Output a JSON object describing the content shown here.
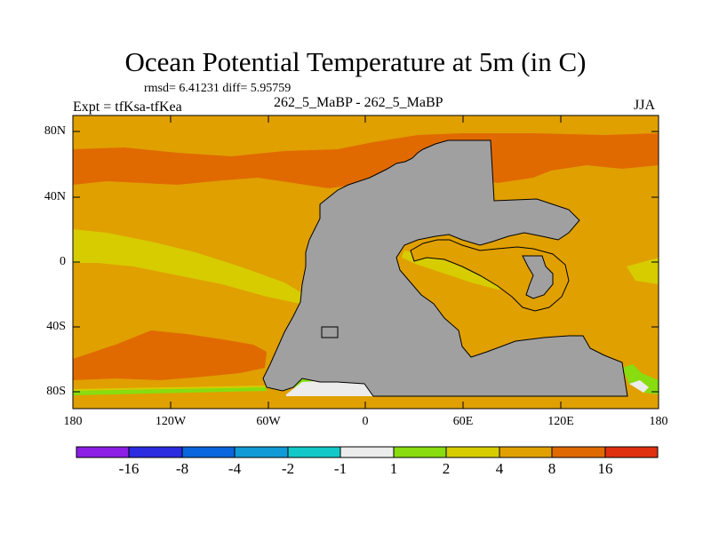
{
  "title": "Ocean Potential Temperature at 5m (in C)",
  "stats": "rmsd= 6.41231 diff= 5.95759",
  "experiment": "Expt = tfKsa-tfKea",
  "subtitle": "262_5_MaBP - 262_5_MaBP",
  "season": "JJA",
  "y_axis_labels": [
    "80N",
    "40N",
    "0",
    "40S",
    "80S"
  ],
  "x_axis_labels": [
    "180",
    "120W",
    "60W",
    "0",
    "60E",
    "120E",
    "180"
  ],
  "map_data": {
    "lon_range": [
      -180,
      180
    ],
    "lat_range": [
      -90,
      90
    ],
    "land_color": "#a0a0a0",
    "regions": [
      {
        "name": "background-field",
        "level": "4 to 8",
        "color": "#e0a000"
      },
      {
        "name": "arctic-warm-band",
        "level": "8 to 16",
        "color": "#e06a00"
      },
      {
        "name": "equatorial-cool-band",
        "level": "2 to 4",
        "color": "#d6cc00"
      },
      {
        "name": "southern-warm-band",
        "level": "8 to 16",
        "color": "#e06a00"
      },
      {
        "name": "southern-ocean-near-zero",
        "level": "-1 to 1",
        "color": "#ececec"
      }
    ]
  },
  "colorbar": {
    "colors": [
      "#8c1ee6",
      "#2c2ce0",
      "#0a66dc",
      "#119ad6",
      "#13c8c8",
      "#ececec",
      "#88dc10",
      "#d6cc00",
      "#e0a000",
      "#e06a00",
      "#e03010"
    ],
    "labels": [
      "-16",
      "-8",
      "-4",
      "-2",
      "-1",
      "1",
      "2",
      "4",
      "8",
      "16"
    ]
  }
}
